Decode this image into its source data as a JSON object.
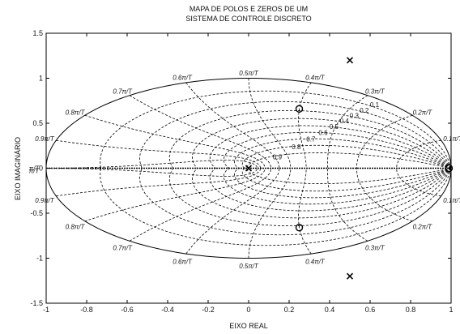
{
  "chart_data": {
    "type": "scatter",
    "title_line1": "MAPA DE POLOS E ZEROS DE UM",
    "title_line2": "SISTEMA DE CONTROLE DISCRETO",
    "xlabel": "EIXO REAL",
    "ylabel": "EIXO IMAGINÁRIO",
    "xlim": [
      -1,
      1
    ],
    "ylim": [
      -1.5,
      1.5
    ],
    "xticks": [
      -1,
      -0.8,
      -0.6,
      -0.4,
      -0.2,
      0,
      0.2,
      0.4,
      0.6,
      0.8,
      1
    ],
    "yticks": [
      -1.5,
      -1,
      -0.5,
      0,
      0.5,
      1,
      1.5
    ],
    "xtick_labels": [
      "-1",
      "-0.8",
      "-0.6",
      "-0.4",
      "-0.2",
      "0",
      "0.2",
      "0.4",
      "0.6",
      "0.8",
      "1"
    ],
    "ytick_labels": [
      "-1.5",
      "-1",
      "-0.5",
      "0",
      "0.5",
      "1",
      "1.5"
    ],
    "unit_circle": true,
    "zeta_grid": [
      0.1,
      0.2,
      0.3,
      0.4,
      0.5,
      0.6,
      0.7,
      0.8,
      0.9
    ],
    "zeta_labels": [
      "0.1",
      "0.2",
      "0.3",
      "0.4",
      "0.5",
      "0.6",
      "0.7",
      "0.8",
      "0.9"
    ],
    "wn_grid": [
      0.1,
      0.2,
      0.3,
      0.4,
      0.5,
      0.6,
      0.7,
      0.8,
      0.9,
      1.0
    ],
    "wn_labels_upper": [
      "0.1π/T",
      "0.2π/T",
      "0.3π/T",
      "0.4π/T",
      "0.5π/T",
      "0.6π/T",
      "0.7π/T",
      "0.8π/T",
      "0.9π/T",
      "π/T"
    ],
    "wn_labels_lower": [
      "0.1π/T",
      "0.2π/T",
      "0.3π/T",
      "0.4π/T",
      "0.5π/T",
      "0.6π/T",
      "0.7π/T",
      "0.8π/T",
      "0.9π/T",
      "π/T"
    ],
    "poles": [
      {
        "x": 0.5,
        "y": 1.2
      },
      {
        "x": 0.5,
        "y": -1.2
      },
      {
        "x": 0.0,
        "y": 0.0
      }
    ],
    "zeros": [
      {
        "x": 0.25,
        "y": 0.66
      },
      {
        "x": 0.25,
        "y": -0.66
      },
      {
        "x": 0.99,
        "y": 0.0
      }
    ]
  }
}
